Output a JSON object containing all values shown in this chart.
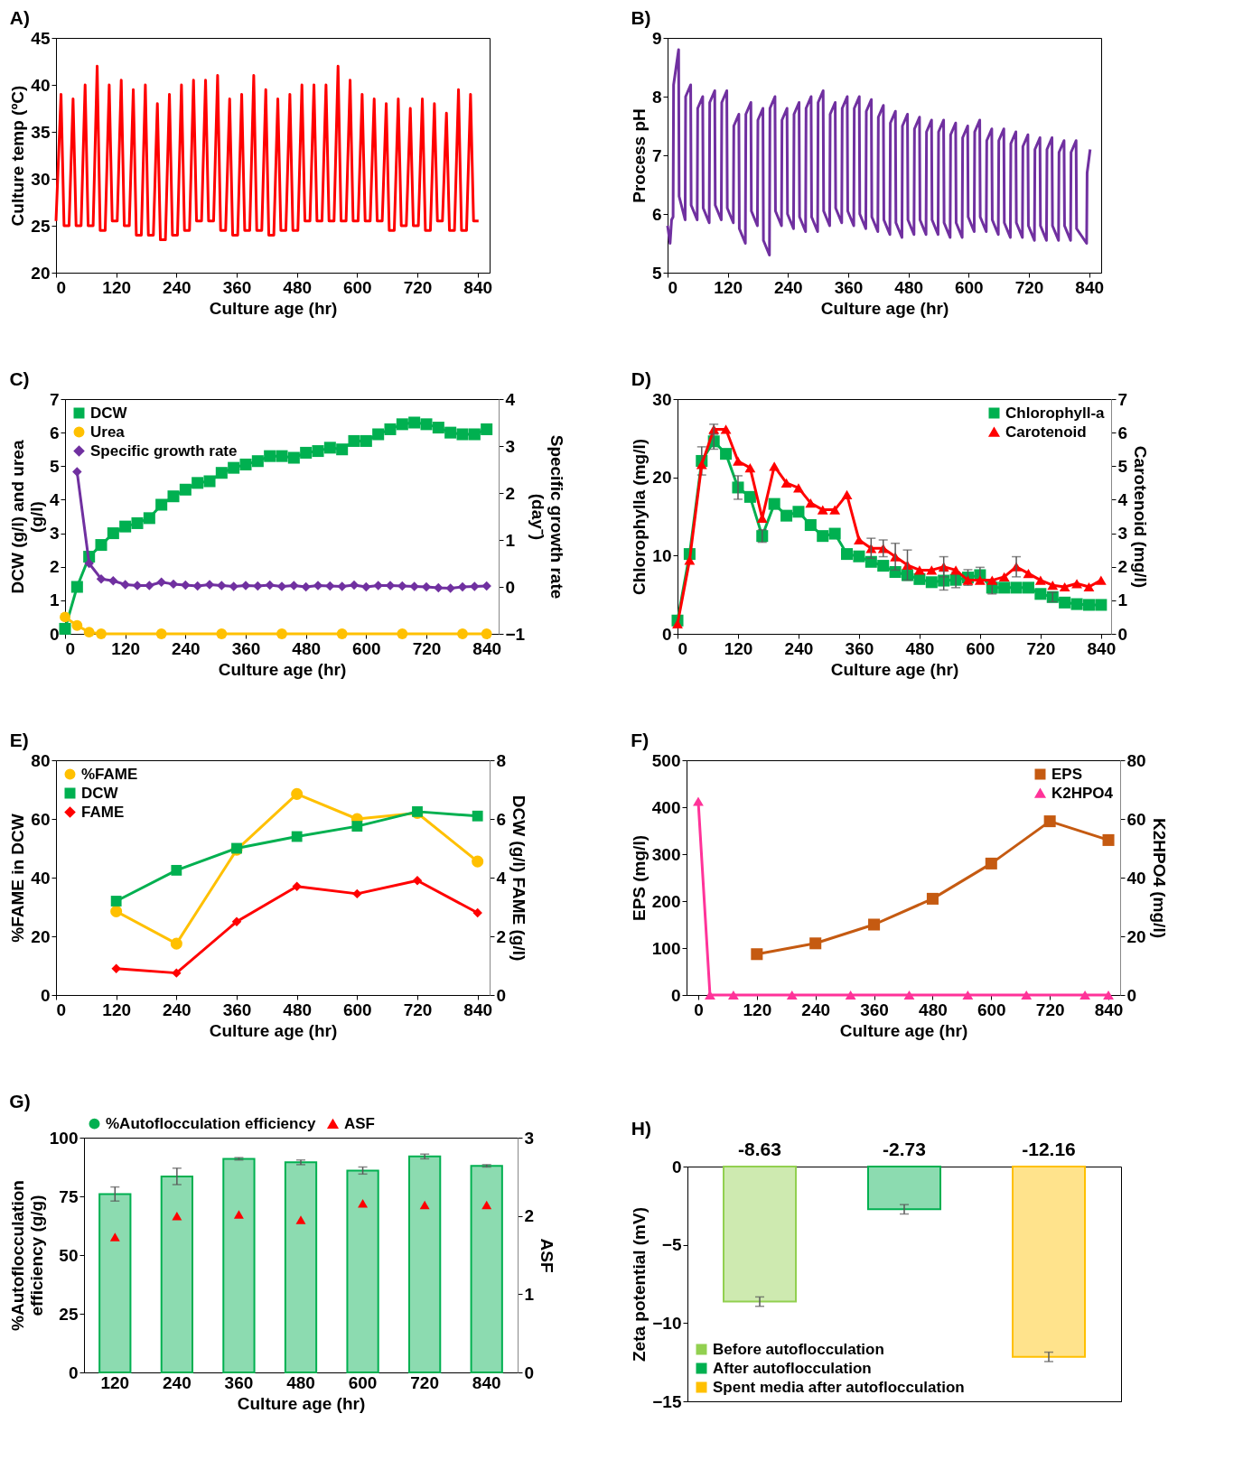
{
  "chart_data": [
    {
      "type": "line",
      "title": "A)",
      "xlabel": "Culture age (hr)",
      "ylabel": "Culture temp (ºC)",
      "xlim": [
        0,
        864
      ],
      "xticks": [
        0,
        120,
        240,
        360,
        480,
        600,
        720,
        840
      ],
      "ylim": [
        20,
        45
      ],
      "yticks": [
        20,
        25,
        30,
        35,
        40,
        45
      ],
      "x": [
        0,
        10,
        16,
        26,
        34,
        40,
        50,
        58,
        64,
        74,
        82,
        88,
        98,
        106,
        112,
        122,
        130,
        136,
        146,
        154,
        160,
        170,
        178,
        184,
        194,
        202,
        208,
        218,
        226,
        232,
        242,
        250,
        256,
        266,
        274,
        280,
        290,
        298,
        304,
        314,
        322,
        328,
        338,
        346,
        352,
        362,
        370,
        376,
        386,
        394,
        400,
        410,
        418,
        424,
        434,
        442,
        448,
        458,
        466,
        472,
        482,
        490,
        496,
        506,
        514,
        520,
        530,
        538,
        544,
        554,
        562,
        568,
        578,
        586,
        592,
        602,
        610,
        616,
        626,
        634,
        640,
        650,
        658,
        664,
        674,
        682,
        688,
        698,
        706,
        712,
        722,
        730,
        736,
        746,
        754,
        760,
        770,
        778,
        784,
        794,
        802,
        808,
        818,
        826,
        832,
        842
      ],
      "series": [
        {
          "color": "#ff0000",
          "values": [
            25.5,
            39,
            25,
            25,
            38.5,
            25,
            25,
            40,
            25,
            25,
            42,
            24.5,
            24.5,
            40,
            25.5,
            25.5,
            40.5,
            25,
            25,
            39.5,
            24,
            24,
            40,
            24,
            24,
            38,
            23.5,
            23.5,
            39,
            24,
            24,
            40,
            24.5,
            24.5,
            40.5,
            25.5,
            25.5,
            40.5,
            25.5,
            25.5,
            41,
            24.5,
            24.5,
            38.5,
            24,
            24,
            39,
            24.5,
            24.5,
            41,
            24.5,
            24.5,
            39.5,
            24,
            24,
            38.5,
            24.5,
            24.5,
            39,
            24.5,
            24.5,
            40,
            25.5,
            25.5,
            40,
            25.5,
            25.5,
            40,
            25.5,
            25.5,
            42,
            25.5,
            25.5,
            40.5,
            25.5,
            25.5,
            39,
            25.5,
            25.5,
            38.5,
            25.5,
            25.5,
            38,
            24.5,
            24.5,
            38.5,
            25,
            25,
            37.5,
            25,
            25,
            38.5,
            24.5,
            24.5,
            38,
            25.5,
            25.5,
            37,
            24.5,
            24.5,
            39.5,
            24.5,
            24.5,
            39,
            25.5,
            25.5
          ]
        }
      ]
    },
    {
      "type": "line",
      "title": "B)",
      "xlabel": "Culture age (hr)",
      "ylabel": "Process pH",
      "xlim": [
        0,
        864
      ],
      "xticks": [
        0,
        120,
        240,
        360,
        480,
        600,
        720,
        840
      ],
      "ylim": [
        5,
        9
      ],
      "yticks": [
        5,
        6,
        7,
        8,
        9
      ],
      "x": [
        0,
        5,
        8,
        11,
        12,
        22,
        23,
        35,
        36,
        46,
        47,
        59,
        60,
        70,
        71,
        83,
        84,
        94,
        95,
        107,
        108,
        118,
        119,
        131,
        132,
        142,
        143,
        155,
        156,
        166,
        167,
        179,
        180,
        190,
        191,
        203,
        204,
        214,
        215,
        227,
        228,
        238,
        239,
        251,
        252,
        262,
        263,
        275,
        276,
        286,
        287,
        299,
        300,
        310,
        311,
        323,
        324,
        334,
        335,
        347,
        348,
        358,
        359,
        371,
        372,
        382,
        383,
        395,
        396,
        406,
        407,
        419,
        420,
        430,
        431,
        443,
        444,
        454,
        455,
        467,
        468,
        478,
        479,
        491,
        492,
        502,
        503,
        515,
        516,
        526,
        527,
        539,
        540,
        550,
        551,
        563,
        564,
        574,
        575,
        587,
        588,
        598,
        599,
        611,
        612,
        622,
        623,
        635,
        636,
        646,
        647,
        659,
        660,
        670,
        671,
        683,
        684,
        694,
        695,
        707,
        708,
        718,
        719,
        731,
        732,
        742,
        743,
        755,
        756,
        766,
        767,
        779,
        780,
        790,
        791,
        803,
        804,
        814,
        815,
        835,
        836,
        842
      ],
      "series": [
        {
          "color": "#7030a0",
          "values": [
            5.8,
            5.5,
            5.9,
            5.95,
            8.2,
            8.8,
            6.3,
            5.9,
            8.0,
            8.2,
            6.15,
            5.9,
            7.8,
            8.0,
            6.1,
            5.85,
            7.9,
            8.1,
            6.15,
            5.9,
            7.9,
            8.1,
            6.1,
            5.85,
            7.5,
            7.7,
            5.75,
            5.5,
            7.7,
            7.9,
            6.05,
            5.8,
            7.6,
            7.8,
            5.55,
            5.3,
            7.8,
            8.0,
            6.05,
            5.8,
            7.6,
            7.8,
            6.0,
            5.75,
            7.7,
            7.9,
            5.95,
            5.7,
            7.8,
            8.0,
            5.95,
            5.7,
            7.9,
            8.1,
            6.05,
            5.8,
            7.7,
            7.9,
            6.1,
            5.85,
            7.8,
            8.0,
            6.05,
            5.8,
            7.8,
            8.0,
            6.0,
            5.75,
            7.75,
            7.95,
            5.95,
            5.7,
            7.65,
            7.85,
            5.9,
            5.65,
            7.55,
            7.75,
            5.85,
            5.6,
            7.5,
            7.7,
            5.9,
            5.65,
            7.45,
            7.65,
            5.9,
            5.65,
            7.4,
            7.6,
            5.9,
            5.65,
            7.4,
            7.6,
            5.85,
            5.6,
            7.35,
            7.55,
            5.85,
            5.6,
            7.3,
            7.5,
            5.95,
            5.7,
            7.4,
            7.6,
            5.95,
            5.7,
            7.25,
            7.45,
            5.9,
            5.65,
            7.25,
            7.45,
            5.85,
            5.6,
            7.2,
            7.4,
            5.85,
            5.6,
            7.15,
            7.35,
            5.8,
            5.55,
            7.1,
            7.3,
            5.8,
            5.55,
            7.1,
            7.3,
            5.8,
            5.55,
            7.05,
            7.25,
            5.8,
            5.55,
            7.05,
            7.25,
            5.75,
            5.5,
            6.7,
            7.1
          ]
        }
      ]
    },
    {
      "type": "line",
      "title": "C)",
      "xlabel": "Culture age (hr)",
      "ylabel": "DCW (g/l) and urea (g/l)",
      "y2label": "Specific growth rate (day⁻)",
      "xlim": [
        0,
        864
      ],
      "xticks": [
        0,
        120,
        240,
        360,
        480,
        600,
        720,
        840
      ],
      "ylim": [
        0,
        7
      ],
      "yticks": [
        0,
        1,
        2,
        3,
        4,
        5,
        6,
        7
      ],
      "y2lim": [
        -1,
        4
      ],
      "y2ticks": [
        -1,
        0,
        1,
        2,
        3,
        4
      ],
      "legend": "top left",
      "x": [
        0,
        24,
        48,
        72,
        96,
        120,
        144,
        168,
        192,
        216,
        240,
        264,
        288,
        312,
        336,
        360,
        384,
        408,
        432,
        456,
        480,
        504,
        528,
        552,
        576,
        600,
        624,
        648,
        672,
        696,
        720,
        744,
        768,
        792,
        816,
        840
      ],
      "series": [
        {
          "name": "DCW",
          "color": "#00b050",
          "marker": "square",
          "values": [
            0.15,
            1.4,
            2.3,
            2.65,
            3.0,
            3.2,
            3.3,
            3.45,
            3.85,
            4.1,
            4.3,
            4.5,
            4.55,
            4.8,
            4.95,
            5.05,
            5.15,
            5.3,
            5.3,
            5.25,
            5.4,
            5.45,
            5.55,
            5.5,
            5.75,
            5.75,
            5.95,
            6.1,
            6.25,
            6.3,
            6.25,
            6.15,
            6.0,
            5.95,
            5.95,
            6.1
          ]
        },
        {
          "name": "Urea",
          "color": "#ffc000",
          "marker": "circle",
          "x": [
            0,
            24,
            48,
            72,
            192,
            312,
            432,
            552,
            672,
            792,
            840
          ],
          "values": [
            0.5,
            0.25,
            0.05,
            0,
            0,
            0,
            0,
            0,
            0,
            0,
            0
          ]
        },
        {
          "name": "Specific growth rate",
          "color": "#7030a0",
          "marker": "diamond",
          "axis": "y2",
          "x": [
            24,
            48,
            72,
            96,
            120,
            144,
            168,
            192,
            216,
            240,
            264,
            288,
            312,
            336,
            360,
            384,
            408,
            432,
            456,
            480,
            504,
            528,
            552,
            576,
            600,
            624,
            648,
            672,
            696,
            720,
            744,
            768,
            792,
            816,
            840
          ],
          "values": [
            2.45,
            0.5,
            0.17,
            0.13,
            0.05,
            0.03,
            0.03,
            0.1,
            0.06,
            0.04,
            0.02,
            0.05,
            0.03,
            0.01,
            0.03,
            0.02,
            0.04,
            0.01,
            0.03,
            0.0,
            0.03,
            0.02,
            0.01,
            0.04,
            0.0,
            0.03,
            0.03,
            0.02,
            0.01,
            0.0,
            -0.02,
            -0.03,
            0.0,
            0.01,
            0.02
          ]
        }
      ]
    },
    {
      "type": "line",
      "title": "D)",
      "xlabel": "Culture age (hr)",
      "ylabel": "Chlorophylla (mg/l)",
      "y2label": "Carotenoid (mg/l)",
      "xlim": [
        0,
        860
      ],
      "xticks": [
        0,
        120,
        240,
        360,
        480,
        600,
        720,
        840
      ],
      "ylim": [
        0,
        30
      ],
      "yticks": [
        0,
        10,
        20,
        30
      ],
      "y2lim": [
        0,
        7
      ],
      "y2ticks": [
        0,
        1,
        2,
        3,
        4,
        5,
        6,
        7
      ],
      "legend": "top right",
      "x": [
        0,
        24,
        48,
        72,
        96,
        120,
        144,
        168,
        192,
        216,
        240,
        264,
        288,
        312,
        336,
        360,
        384,
        408,
        432,
        456,
        480,
        504,
        528,
        552,
        576,
        600,
        624,
        648,
        672,
        696,
        720,
        744,
        768,
        792,
        816,
        840
      ],
      "series": [
        {
          "name": "Chlorophyll-a",
          "color": "#00b050",
          "marker": "square",
          "values": [
            1.7,
            10.2,
            22.1,
            24.6,
            23.0,
            18.7,
            17.5,
            12.5,
            16.6,
            15.1,
            15.6,
            13.9,
            12.5,
            12.8,
            10.2,
            9.9,
            9.2,
            8.7,
            7.9,
            7.5,
            7.0,
            6.6,
            6.8,
            6.9,
            7.2,
            7.5,
            5.9,
            5.9,
            5.9,
            5.9,
            5.1,
            4.7,
            4.0,
            3.8,
            3.7,
            3.7
          ],
          "errors": [
            null,
            null,
            1.8,
            1.0,
            null,
            1.5,
            null,
            0.8,
            null,
            null,
            null,
            null,
            null,
            null,
            null,
            null,
            null,
            null,
            null,
            null,
            null,
            null,
            1.2,
            1.0,
            1.0,
            1.0,
            0.8,
            null,
            null,
            null,
            null,
            0.6,
            null,
            null,
            null,
            null
          ]
        },
        {
          "name": "Carotenoid",
          "color": "#ff0000",
          "marker": "triangle",
          "axis": "y2",
          "values": [
            0.3,
            2.2,
            5.05,
            6.1,
            6.1,
            5.15,
            4.95,
            3.45,
            5.0,
            4.5,
            4.35,
            3.9,
            3.7,
            3.7,
            4.15,
            2.8,
            2.55,
            2.55,
            2.3,
            2.05,
            1.9,
            1.9,
            2.0,
            1.9,
            1.6,
            1.6,
            1.6,
            1.7,
            2.0,
            1.8,
            1.6,
            1.45,
            1.4,
            1.5,
            1.4,
            1.6
          ],
          "errors": [
            null,
            null,
            null,
            0.15,
            null,
            null,
            null,
            null,
            null,
            null,
            null,
            null,
            null,
            null,
            null,
            null,
            0.3,
            0.25,
            0.4,
            0.45,
            null,
            null,
            0.3,
            null,
            null,
            null,
            null,
            null,
            0.3,
            null,
            null,
            null,
            null,
            null,
            null,
            null
          ]
        }
      ]
    },
    {
      "type": "line",
      "title": "E)",
      "xlabel": "Culture age (hr)",
      "ylabel": "%FAME in DCW",
      "y2label": "DCW (g/l) FAME (g/l)",
      "xlim": [
        0,
        864
      ],
      "xticks": [
        0,
        120,
        240,
        360,
        480,
        600,
        720,
        840
      ],
      "ylim": [
        0,
        80
      ],
      "yticks": [
        0,
        20,
        40,
        60,
        80
      ],
      "y2lim": [
        0,
        8
      ],
      "y2ticks": [
        0,
        2,
        4,
        6,
        8
      ],
      "legend": "top left",
      "x": [
        120,
        240,
        360,
        480,
        600,
        720,
        840
      ],
      "series": [
        {
          "name": "%FAME",
          "color": "#ffc000",
          "marker": "circle",
          "values": [
            28.5,
            17.5,
            49.5,
            68.5,
            60,
            62,
            45.5
          ]
        },
        {
          "name": "DCW",
          "color": "#00b050",
          "marker": "square",
          "axis": "y2",
          "values": [
            3.2,
            4.25,
            5.0,
            5.4,
            5.75,
            6.25,
            6.1
          ]
        },
        {
          "name": "FAME",
          "color": "#ff0000",
          "marker": "diamond",
          "axis": "y2",
          "values": [
            0.9,
            0.75,
            2.5,
            3.7,
            3.45,
            3.9,
            2.8
          ]
        }
      ]
    },
    {
      "type": "line",
      "title": "F)",
      "xlabel": "Culture age (hr)",
      "ylabel": "EPS (mg/l)",
      "y2label": "K2HPO4 (mg/l)",
      "xlim": [
        -24,
        864
      ],
      "xticks": [
        0,
        120,
        240,
        360,
        480,
        600,
        720,
        840
      ],
      "ylim": [
        0,
        500
      ],
      "yticks": [
        0,
        100,
        200,
        300,
        400,
        500
      ],
      "y2lim": [
        0,
        80
      ],
      "y2ticks": [
        0,
        20,
        40,
        60,
        80
      ],
      "legend": "top right",
      "series": [
        {
          "name": "EPS",
          "color": "#c55a11",
          "marker": "square",
          "x": [
            120,
            240,
            360,
            480,
            600,
            720,
            840
          ],
          "values": [
            87,
            110,
            150,
            205,
            280,
            370,
            330
          ]
        },
        {
          "name": "K2HPO4",
          "color": "#ff3399",
          "marker": "triangle",
          "axis": "y2",
          "x": [
            0,
            24,
            72,
            192,
            312,
            432,
            552,
            672,
            792,
            840
          ],
          "values": [
            66,
            0,
            0,
            0,
            0,
            0,
            0,
            0,
            0,
            0
          ]
        }
      ]
    },
    {
      "type": "bar",
      "title": "G)",
      "xlabel": "Culture age (hr)",
      "ylabel": "%Autoflocculation efficiency (g/g)",
      "y2label": "ASF",
      "categories": [
        "120",
        "240",
        "360",
        "480",
        "600",
        "720",
        "840"
      ],
      "ylim": [
        0,
        100
      ],
      "yticks": [
        0,
        25,
        50,
        75,
        100
      ],
      "y2lim": [
        0,
        3
      ],
      "y2ticks": [
        0,
        1,
        2,
        3
      ],
      "legend": "top",
      "series": [
        {
          "name": "%Autoflocculation efficiency",
          "color": "#00b050",
          "values": [
            76,
            83.5,
            91,
            89.5,
            86,
            92,
            88
          ],
          "errors": [
            3,
            3.5,
            0.5,
            1,
            1.5,
            1,
            0.5
          ]
        },
        {
          "name": "ASF",
          "type": "scatter",
          "color": "#ff0000",
          "marker": "triangle",
          "axis": "y2",
          "x": [
            "120",
            "240",
            "360",
            "480",
            "600",
            "720",
            "840"
          ],
          "values": [
            1.73,
            2.0,
            2.02,
            1.95,
            2.16,
            2.14,
            2.14
          ]
        }
      ]
    },
    {
      "type": "bar",
      "title": "H)",
      "ylabel": "Zeta potential (mV)",
      "categories": [
        null,
        null,
        null
      ],
      "ylim": [
        -15,
        0
      ],
      "yticks": [
        -15,
        -10,
        -5,
        0
      ],
      "legend": "bottom left",
      "data_labels": true,
      "series": [
        {
          "name": "Before autoflocculation",
          "color": "#92d050",
          "values": [
            -8.63,
            null,
            null
          ],
          "errors": [
            0.3,
            null,
            null
          ]
        },
        {
          "name": "After autoflocculation",
          "color": "#00b050",
          "values": [
            null,
            -2.73,
            null
          ],
          "errors": [
            null,
            0.3,
            null
          ]
        },
        {
          "name": "Spent media after autoflocculation",
          "color": "#ffc000",
          "values": [
            null,
            null,
            -12.16
          ],
          "errors": [
            null,
            null,
            0.3
          ]
        }
      ]
    }
  ]
}
